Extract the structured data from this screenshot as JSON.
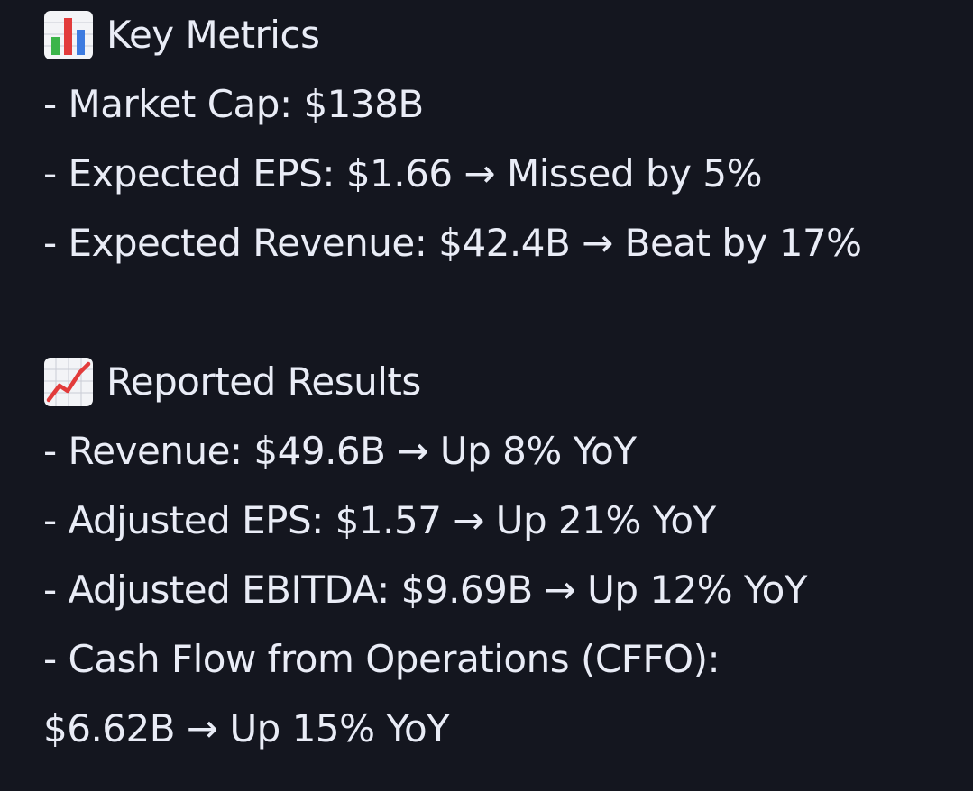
{
  "key_metrics": {
    "icon": "bar-chart-icon",
    "title": "Key Metrics",
    "items": [
      "- Market Cap: $138B",
      "- Expected EPS: $1.66 → Missed by 5%",
      "- Expected Revenue: $42.4B → Beat by 17%"
    ]
  },
  "reported_results": {
    "icon": "chart-increasing-icon",
    "title": "Reported Results",
    "items": [
      "- Revenue: $49.6B → Up 8% YoY",
      "- Adjusted EPS: $1.57 → Up 21% YoY",
      "- Adjusted EBITDA: $9.69B → Up 12% YoY",
      "- Cash Flow from Operations (CFFO):",
      "$6.62B → Up 15% YoY"
    ]
  },
  "colors": {
    "background": "#14161f",
    "text": "#e9ecf6"
  }
}
